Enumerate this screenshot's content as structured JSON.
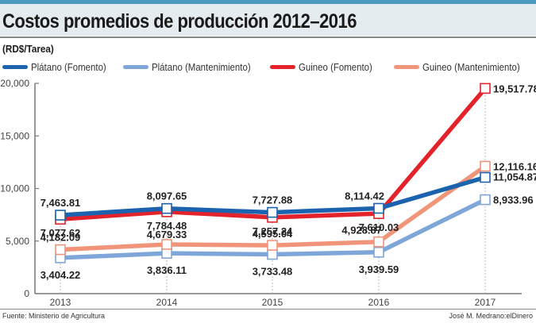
{
  "header": {
    "title": "Costos promedios de producción 2012–2016",
    "unit": "(RD$/Tarea)"
  },
  "legend": [
    {
      "label": "Plátano (Fomento)",
      "color": "#1b63ae"
    },
    {
      "label": "Plátano (Mantenimiento)",
      "color": "#7ea6d8"
    },
    {
      "label": "Guineo (Fomento)",
      "color": "#e3222b"
    },
    {
      "label": "Guineo (Mantenimiento)",
      "color": "#f0957a"
    }
  ],
  "footer": {
    "source": "Fuente: Ministerio de Agricultura",
    "credit": "José M. Medrano:elDinero"
  },
  "chart_data": {
    "type": "line",
    "title": "Costos promedios de producción 2012–2016",
    "subtitle": "(RD$/Tarea)",
    "xlabel": "",
    "ylabel": "RD$/Tarea",
    "categories": [
      "2013",
      "2014",
      "2015",
      "2016",
      "2017"
    ],
    "ylim": [
      0,
      20000
    ],
    "yticks": [
      "0",
      "5,000",
      "10,000",
      "15,000",
      "20,000"
    ],
    "yticks_values": [
      0,
      5000,
      10000,
      15000,
      20000
    ],
    "grid": false,
    "legend_position": "top",
    "series": [
      {
        "name": "Plátano (Fomento)",
        "color": "#1b63ae",
        "values": [
          7463.81,
          8097.65,
          7727.88,
          8114.42,
          11054.87
        ],
        "labels": [
          "7,463.81",
          "8,097.65",
          "7,727.88",
          "8,114.42",
          "11,054.87"
        ]
      },
      {
        "name": "Plátano (Mantenimiento)",
        "color": "#7ea6d8",
        "values": [
          3404.22,
          3836.11,
          3733.48,
          3939.59,
          8933.96
        ],
        "labels": [
          "3,404.22",
          "3,836.11",
          "3,733.48",
          "3,939.59",
          "8,933.96"
        ]
      },
      {
        "name": "Guineo (Fomento)",
        "color": "#e3222b",
        "values": [
          7077.62,
          7784.48,
          7257.24,
          7610.03,
          19517.78
        ],
        "labels": [
          "7,077.62",
          "7,784.48",
          "7,257.24",
          "7,610.03",
          "19,517.78"
        ]
      },
      {
        "name": "Guineo (Mantenimiento)",
        "color": "#f0957a",
        "values": [
          4182.09,
          4679.33,
          4595.04,
          4928.87,
          12116.16
        ],
        "labels": [
          "4,182.09",
          "4,679.33",
          "4,595.04",
          "4,928.87",
          "12,116.16"
        ]
      }
    ]
  }
}
